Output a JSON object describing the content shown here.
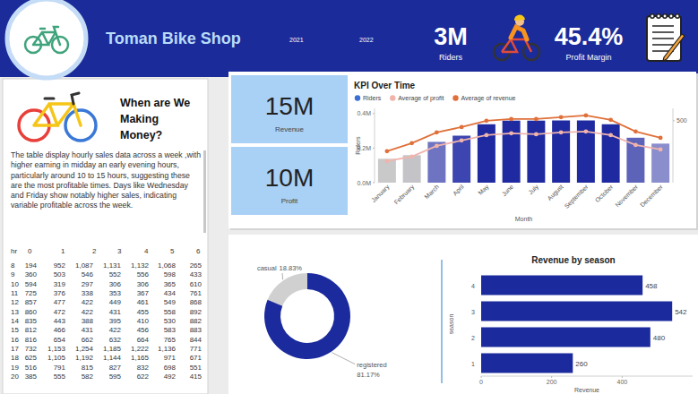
{
  "header": {
    "title": "Toman Bike Shop",
    "years": [
      "2021",
      "2022"
    ],
    "kpis": [
      {
        "value": "3M",
        "label": "Riders"
      },
      {
        "value": "45.4%",
        "label": "Profit Margin"
      }
    ]
  },
  "cards": [
    {
      "value": "15M",
      "label": "Revenue"
    },
    {
      "value": "10M",
      "label": "Profit"
    }
  ],
  "panel": {
    "title_lines": [
      "When are We",
      "Making",
      "Money?"
    ],
    "text": "The table display hourly sales data across a week ,with higher earning in midday an early evening hours, particularly around 10 to 15 hours, suggesting these are the most profitable times. Days like Wednesday and Friday show notably higher sales, indicating variable profitable across the week."
  },
  "table": {
    "header": [
      "hr",
      "0",
      "1",
      "2",
      "3",
      "4",
      "5",
      "6"
    ],
    "rows": [
      [
        "8",
        "194",
        "952",
        "1,087",
        "1,131",
        "1,132",
        "1,068",
        "265"
      ],
      [
        "9",
        "360",
        "503",
        "546",
        "552",
        "556",
        "598",
        "433"
      ],
      [
        "10",
        "594",
        "319",
        "297",
        "306",
        "306",
        "365",
        "610"
      ],
      [
        "11",
        "725",
        "376",
        "338",
        "353",
        "367",
        "434",
        "761"
      ],
      [
        "12",
        "857",
        "477",
        "422",
        "449",
        "461",
        "549",
        "868"
      ],
      [
        "13",
        "860",
        "472",
        "422",
        "431",
        "455",
        "558",
        "892"
      ],
      [
        "14",
        "835",
        "443",
        "388",
        "395",
        "410",
        "530",
        "882"
      ],
      [
        "15",
        "812",
        "466",
        "431",
        "422",
        "456",
        "583",
        "883"
      ],
      [
        "16",
        "816",
        "654",
        "662",
        "632",
        "664",
        "765",
        "844"
      ],
      [
        "17",
        "732",
        "1,153",
        "1,254",
        "1,185",
        "1,222",
        "1,136",
        "771"
      ],
      [
        "18",
        "625",
        "1,105",
        "1,192",
        "1,144",
        "1,165",
        "971",
        "671"
      ],
      [
        "19",
        "516",
        "791",
        "815",
        "827",
        "832",
        "698",
        "551"
      ],
      [
        "20",
        "385",
        "555",
        "582",
        "595",
        "622",
        "492",
        "415"
      ]
    ]
  },
  "chart_data": [
    {
      "type": "bar",
      "title": "KPI Over Time",
      "x_label": "Month",
      "y_label": "Riders",
      "categories": [
        "January",
        "February",
        "March",
        "April",
        "May",
        "June",
        "July",
        "August",
        "September",
        "October",
        "November",
        "December"
      ],
      "ylim": [
        0,
        430000
      ],
      "yticks": [
        {
          "value": 0,
          "label": "0.0M"
        },
        {
          "value": 200000,
          "label": "0.2M"
        },
        {
          "value": 400000,
          "label": "0.4M"
        }
      ],
      "y2lim": [
        0,
        600
      ],
      "y2ticks": [
        500
      ],
      "legend": "top",
      "grid": false,
      "series": [
        {
          "name": "Riders",
          "type": "bar",
          "color": "#3b6fd4",
          "colors": [
            "#c9c9c9",
            "#c4c4c8",
            "#6e74c2",
            "#3d45b0",
            "#1f2aa0",
            "#1f2aa0",
            "#1f2aa0",
            "#1f2aa0",
            "#1f2aa0",
            "#1f2aa0",
            "#5d63b9",
            "#8a8ecc"
          ],
          "values": [
            138000,
            159000,
            236000,
            272000,
            338000,
            359000,
            359000,
            360000,
            360000,
            338000,
            260000,
            226000
          ]
        },
        {
          "name": "Average of profit",
          "type": "line",
          "axis": "y2",
          "color": "#f0b4ac",
          "marker": "circle",
          "values": [
            174,
            210,
            297,
            341,
            384,
            399,
            391,
            406,
            413,
            384,
            304,
            268
          ]
        },
        {
          "name": "Average of revenue",
          "type": "line",
          "axis": "y2",
          "color": "#e0703a",
          "marker": "circle",
          "values": [
            254,
            319,
            406,
            449,
            500,
            514,
            514,
            529,
            543,
            507,
            413,
            362
          ]
        }
      ]
    },
    {
      "type": "donut",
      "categories": [
        "casual",
        "registered"
      ],
      "values": [
        18.83,
        81.17
      ],
      "value_labels": [
        "18.83%",
        "81.17%"
      ],
      "colors": [
        "#d0d0d0",
        "#1b2a9c"
      ],
      "data_labels": true
    },
    {
      "type": "bar",
      "orientation": "horizontal",
      "title": "Revenue by season",
      "x_label": "Revenue",
      "y_label": "season",
      "categories": [
        "1",
        "2",
        "3",
        "4"
      ],
      "values": [
        260,
        480,
        542,
        458
      ],
      "color": "#1b2a9c",
      "xlim": [
        0,
        600
      ],
      "xticks": [
        0,
        200,
        400
      ],
      "grid": false,
      "data_labels": true
    }
  ]
}
